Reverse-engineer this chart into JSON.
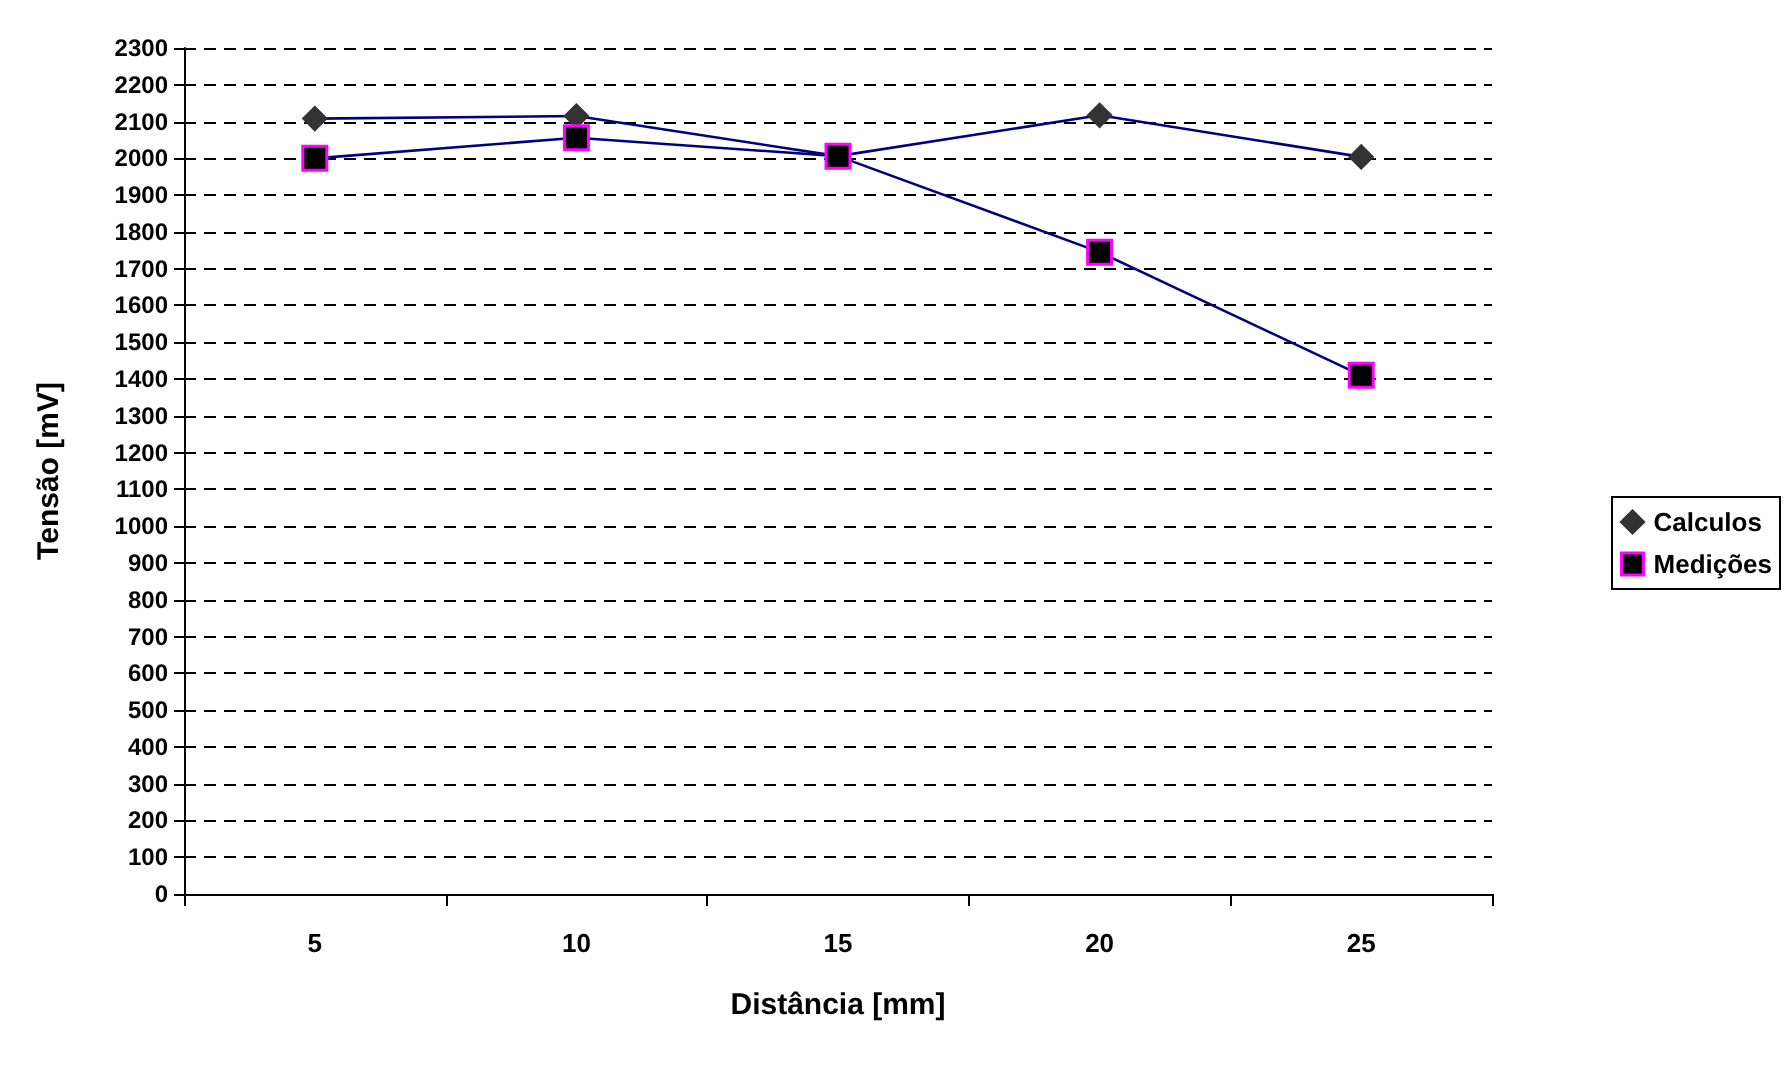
{
  "chart_data": {
    "type": "line",
    "xlabel": "Distância [mm]",
    "ylabel": "Tensão [mV]",
    "categories": [
      "5",
      "10",
      "15",
      "20",
      "25"
    ],
    "series": [
      {
        "name": "Calculos",
        "color": "#000080",
        "marker": "diamond",
        "values": [
          2108,
          2115,
          2006,
          2117,
          2004
        ]
      },
      {
        "name": "Medições",
        "color": "#000080",
        "marker": "square",
        "values": [
          2000,
          2056,
          2006,
          1745,
          1410
        ]
      }
    ],
    "ylim": [
      0,
      2300
    ],
    "yticks": [
      0,
      100,
      200,
      300,
      400,
      500,
      600,
      700,
      800,
      900,
      1000,
      1100,
      1200,
      1300,
      1400,
      1500,
      1600,
      1700,
      1800,
      1900,
      2000,
      2100,
      2200,
      2300
    ],
    "grid": "y",
    "legend": "right",
    "line_style": "solid"
  }
}
